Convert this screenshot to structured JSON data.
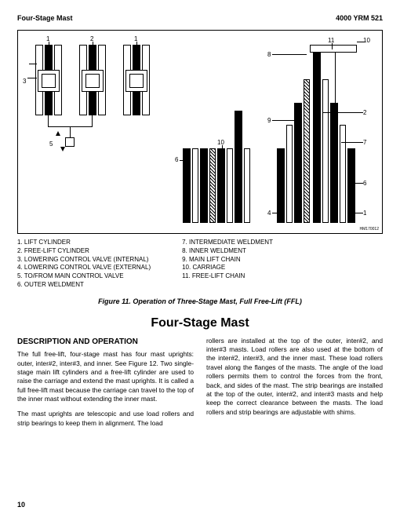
{
  "header": {
    "left": "Four-Stage Mast",
    "right": "4000 YRM 521"
  },
  "figure_id": "HM170012",
  "legend_left": [
    "1.   LIFT CYLINDER",
    "2.   FREE-LIFT CYLINDER",
    "3.   LOWERING CONTROL VALVE (INTERNAL)",
    "4.   LOWERING CONTROL VALVE (EXTERNAL)",
    "5.   TO/FROM MAIN CONTROL VALVE",
    "6.   OUTER WELDMENT"
  ],
  "legend_right": [
    "7.    INTERMEDIATE WELDMENT",
    "8.    INNER WELDMENT",
    "9.    MAIN LIFT CHAIN",
    "10.  CARRIAGE",
    "11.  FREE-LIFT CHAIN"
  ],
  "caption": "Figure 11.  Operation of Three-Stage Mast, Full Free-Lift (FFL)",
  "section_title": "Four-Stage  Mast",
  "subhead": "DESCRIPTION AND OPERATION",
  "para1": "The full free-lift, four-stage mast has four mast uprights: outer, inter#2, inter#3, and inner.  See Figure 12.  Two single-stage main lift cylinders and a free-lift cylinder are used to raise the carriage and extend the mast uprights.  It is called a full free-lift mast because the carriage can travel to the top of the inner mast without extending the inner mast.",
  "para2": "The mast uprights are telescopic and use load rollers and strip bearings to keep them in alignment.  The load",
  "para3": "rollers are installed at the top of the outer, inter#2, and inter#3 masts. Load rollers are also used at the bottom of the inter#2, inter#3, and the inner mast. These load rollers travel along the flanges of the masts. The angle of the load rollers permits them to control the forces from the front, back, and sides of the mast.  The strip bearings are installed at the top of the outer, inter#2, and inter#3 masts and help keep the correct clearance between the masts. The load rollers and strip bearings are adjustable with shims.",
  "page": "10"
}
